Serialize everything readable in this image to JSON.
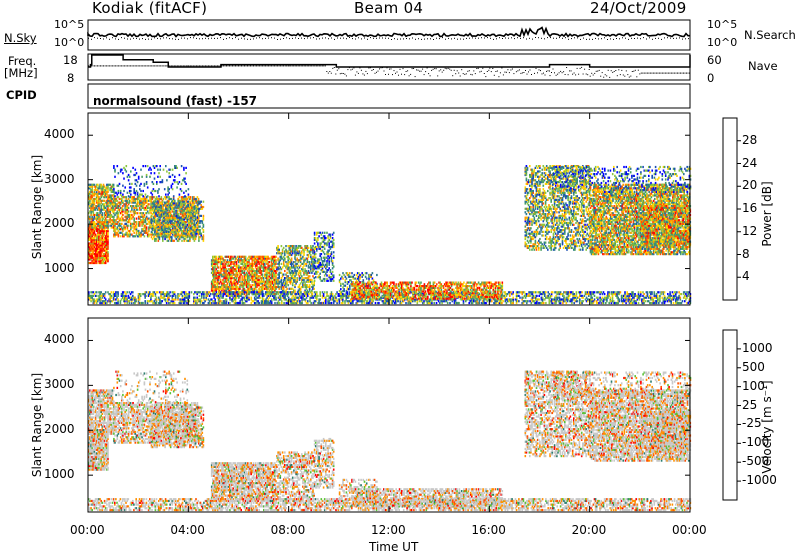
{
  "header": {
    "station": "Kodiak (fitACF)",
    "beam": "Beam 04",
    "date": "24/Oct/2009"
  },
  "panel_labels": {
    "nsky": "N.Sky",
    "nsearch": "N.Search",
    "freq_line1": "Freq.",
    "freq_line2": "[MHz]",
    "nave": "Nave",
    "cpid": "CPID",
    "cpid_value": "normalsound (fast) -157",
    "noise_tick_top": "10^5",
    "noise_tick_bottom": "10^0",
    "freq_tick_top": "18",
    "freq_tick_bottom": "8",
    "nave_tick_top": "60",
    "nave_tick_bottom": "0"
  },
  "colors": {
    "power_scale": [
      "#0000ff",
      "#1a4fb4",
      "#2f7a90",
      "#4aa060",
      "#8cc63f",
      "#ffd400",
      "#ff9a00",
      "#ff5000",
      "#ff0000"
    ],
    "velocity_scale": [
      "#1a1aff",
      "#2255b0",
      "#2a7d6e",
      "#59c238",
      "#bfbfbf",
      "#bfbfbf",
      "#ff9000",
      "#ff5000",
      "#ff0000"
    ]
  },
  "chart_data": [
    {
      "type": "line",
      "title": "",
      "ylabel": "N.Sky",
      "y2label": "N.Search",
      "y_ticks": [
        "10^5",
        "10^0"
      ],
      "x": [
        "00:00",
        "04:00",
        "08:00",
        "12:00",
        "16:00",
        "20:00",
        "00:00"
      ],
      "note": "Sky noise roughly constant near the middle of the log axis across the day; transient spike near 17:30-18:00"
    },
    {
      "type": "line",
      "ylabel": "Freq. [MHz]",
      "y2label": "Nave",
      "ylim": [
        8,
        18
      ],
      "y2lim": [
        0,
        60
      ],
      "series": [
        {
          "name": "Freq.",
          "x": [
            0.0,
            0.1,
            0.15,
            1.0,
            1.4,
            2.6,
            3.2,
            4.9,
            5.3,
            9.2,
            9.9,
            12.0,
            18.4,
            20.0,
            22.0,
            23.4,
            24.0
          ],
          "values": [
            13,
            14,
            18,
            18,
            16,
            15,
            13,
            13,
            14,
            14,
            13,
            13,
            14,
            13,
            13,
            13,
            18
          ]
        },
        {
          "name": "Nave",
          "x": [
            0,
            4,
            8,
            9.5,
            12,
            16,
            17,
            18.4,
            20,
            24
          ],
          "values": [
            34,
            34,
            34,
            20,
            18,
            18,
            22,
            20,
            16,
            16
          ]
        }
      ]
    },
    {
      "type": "heatmap",
      "ylabel": "Slant Range [km]",
      "xlabel": "Time UT",
      "ylim": [
        180,
        4500
      ],
      "x_ticks": [
        "00:00",
        "04:00",
        "08:00",
        "12:00",
        "16:00",
        "20:00",
        "00:00"
      ],
      "y_ticks": [
        "1000",
        "2000",
        "3000",
        "4000"
      ],
      "colorbar": {
        "label": "Power [dB]",
        "ticks": [
          "28",
          "24",
          "20",
          "16",
          "12",
          "8",
          "4"
        ],
        "range": [
          0,
          32
        ]
      }
    },
    {
      "type": "heatmap",
      "ylabel": "Slant Range [km]",
      "xlabel": "Time UT",
      "ylim": [
        180,
        4500
      ],
      "x_ticks": [
        "00:00",
        "04:00",
        "08:00",
        "12:00",
        "16:00",
        "20:00",
        "00:00"
      ],
      "y_ticks": [
        "1000",
        "2000",
        "3000",
        "4000"
      ],
      "colorbar": {
        "label": "Velocity [m s^-1]",
        "ticks": [
          "1000",
          "500",
          "100",
          "25",
          "-25",
          "-100",
          "-500",
          "-1000"
        ]
      }
    }
  ],
  "axis_title_x": "Time UT",
  "range_label": "Slant Range [km]",
  "power_label": "Power [dB]",
  "velocity_label": "Velocity [m s⁻¹]"
}
